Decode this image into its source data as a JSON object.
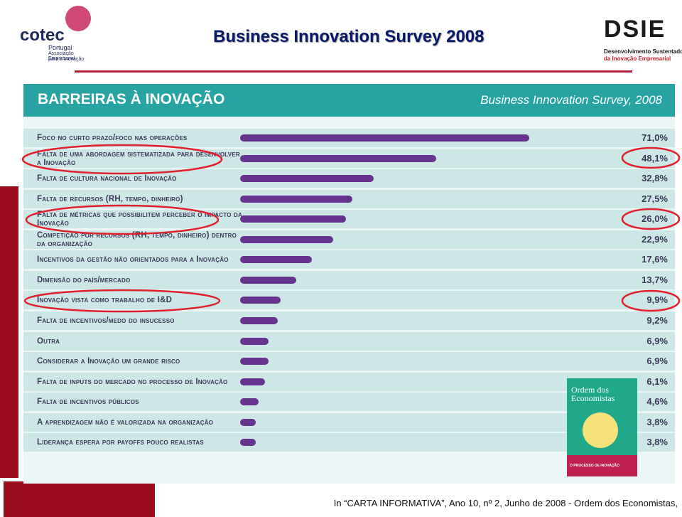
{
  "header": {
    "title": "Business Innovation Survey 2008",
    "left_logo": {
      "name": "cotec",
      "country": "Portugal",
      "tagline": [
        "Associação Empresarial",
        "para a Inovação"
      ]
    },
    "right_logo": {
      "name": "DSIE",
      "tagline": [
        "Desenvolvimento Sustentado",
        "da Inovação Empresarial"
      ]
    }
  },
  "chart_data": {
    "type": "bar",
    "orientation": "horizontal",
    "title": "BARREIRAS À INOVAÇÃO",
    "subtitle": "Business Innovation Survey, 2008",
    "categories": [
      "Foco no curto prazo/foco nas operações",
      "Falta de uma abordagem sistematizada para desenvolver a Inovação",
      "Falta de cultura nacional de Inovação",
      "Falta de recursos (RH, tempo, dinheiro)",
      "Falta de métricas que possibilitem perceber o impacto da Inovação",
      "Competição por recursos (RH, tempo, dinheiro) dentro da organização",
      "Incentivos da gestão não orientados para a Inovação",
      "Dimensão do país/mercado",
      "Inovação vista como trabalho de I&D",
      "Falta de incentivos/medo do insucesso",
      "Outra",
      "Considerar a Inovação um grande risco",
      "Falta de inputs do mercado no processo de Inovação",
      "Falta de incentivos públicos",
      "A aprendizagem não é valorizada na organização",
      "Liderança espera por payoffs pouco realistas"
    ],
    "values": [
      71.0,
      48.1,
      32.8,
      27.5,
      26.0,
      22.9,
      17.6,
      13.7,
      9.9,
      9.2,
      6.9,
      6.9,
      6.1,
      4.6,
      3.8,
      3.8
    ],
    "value_labels": [
      "71,0%",
      "48,1%",
      "32,8%",
      "27,5%",
      "26,0%",
      "22,9%",
      "17,6%",
      "13,7%",
      "9,9%",
      "9,2%",
      "6,9%",
      "6,9%",
      "6,1%",
      "4,6%",
      "3,8%",
      "3,8%"
    ],
    "color": "#66338f"
  },
  "magazine": {
    "title": "Ordem dos Economistas",
    "headline": "O processo de inovação"
  },
  "footer": {
    "source": "In “CARTA INFORMATIVA”, Ano 10, nº 2, Junho de 2008 - Ordem dos Economistas,"
  }
}
